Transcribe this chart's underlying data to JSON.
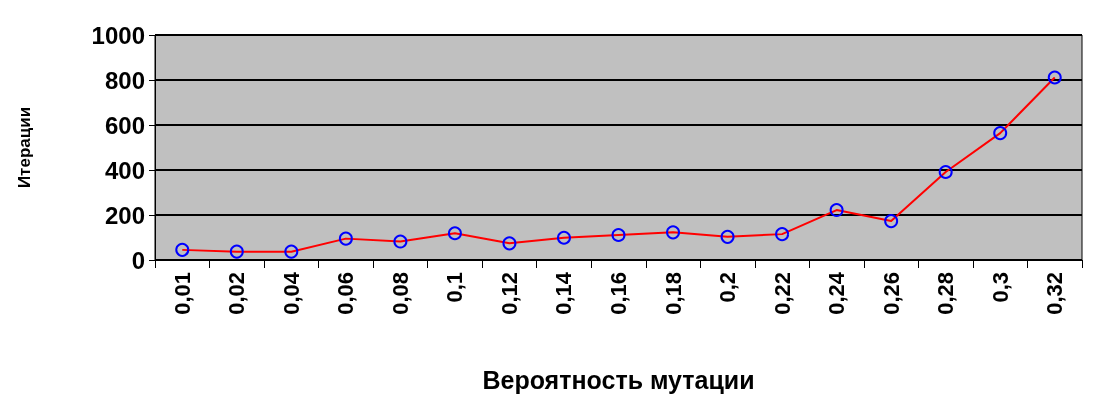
{
  "chart_data": {
    "type": "line",
    "xlabel": "Вероятность мутации",
    "ylabel": "Итерации",
    "categories": [
      "0,01",
      "0,02",
      "0,04",
      "0,06",
      "0,08",
      "0,1",
      "0,12",
      "0,14",
      "0,16",
      "0,18",
      "0,2",
      "0,22",
      "0,24",
      "0,26",
      "0,28",
      "0,3",
      "0,32"
    ],
    "series": [
      {
        "color": "#ff0000",
        "values": [
          45,
          37,
          37,
          95,
          82,
          119,
          74,
          99,
          111,
          123,
          103,
          115,
          222,
          173,
          391,
          564,
          811
        ]
      }
    ],
    "ylim": [
      0,
      1000
    ],
    "yticks": [
      0,
      200,
      400,
      600,
      800,
      1000
    ],
    "grid": "y",
    "marker": "circle",
    "line_style": "solid"
  }
}
